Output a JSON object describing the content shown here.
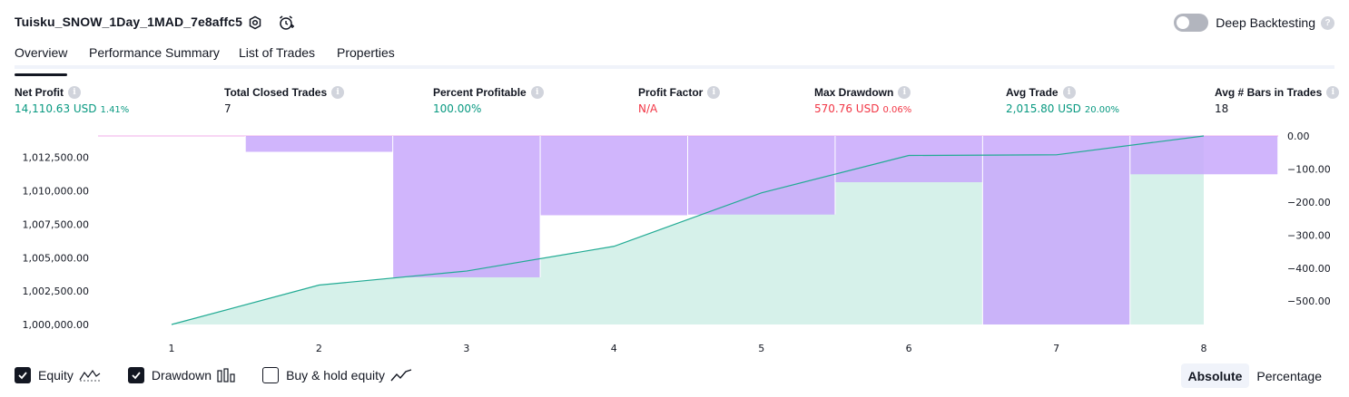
{
  "header": {
    "strategy_name": "Tuisku_SNOW_1Day_1MAD_7e8affc5",
    "settings_icon": "settings-gear-icon",
    "alert_icon": "add-alert-clock-icon",
    "deep_backtesting_label": "Deep Backtesting",
    "deep_backtesting_enabled": false,
    "help_glyph": "?"
  },
  "tabs": [
    {
      "label": "Overview",
      "active": true
    },
    {
      "label": "Performance Summary",
      "active": false
    },
    {
      "label": "List of Trades",
      "active": false
    },
    {
      "label": "Properties",
      "active": false
    }
  ],
  "info_glyph": "i",
  "metrics": [
    {
      "label": "Net Profit",
      "value": "14,110.63 USD",
      "sub": "1.41%",
      "color": "green"
    },
    {
      "label": "Total Closed Trades",
      "value": "7",
      "sub": "",
      "color": "dark"
    },
    {
      "label": "Percent Profitable",
      "value": "100.00%",
      "sub": "",
      "color": "green"
    },
    {
      "label": "Profit Factor",
      "value": "N/A",
      "sub": "",
      "color": "red"
    },
    {
      "label": "Max Drawdown",
      "value": "570.76 USD",
      "sub": "0.06%",
      "color": "red"
    },
    {
      "label": "Avg Trade",
      "value": "2,015.80 USD",
      "sub": "20.00%",
      "color": "green"
    },
    {
      "label": "Avg # Bars in Trades",
      "value": "18",
      "sub": "",
      "color": "dark"
    }
  ],
  "chart_data": {
    "type": "line",
    "x": [
      1,
      2,
      3,
      4,
      5,
      6,
      7,
      8
    ],
    "series": [
      {
        "name": "Equity",
        "type": "area",
        "values": [
          1000000,
          1002950,
          1004000,
          1005850,
          1009850,
          1012650,
          1012700,
          1014110.63
        ]
      },
      {
        "name": "Drawdown",
        "type": "bar",
        "values": [
          0,
          -48,
          -428,
          -240,
          -238,
          -140,
          -570.76,
          -116
        ]
      }
    ],
    "left_axis": {
      "ticks": [
        1000000,
        1002500,
        1005000,
        1007500,
        1010000,
        1012500
      ],
      "tick_labels": [
        "1,000,000.00",
        "1,002,500.00",
        "1,005,000.00",
        "1,007,500.00",
        "1,010,000.00",
        "1,012,500.00"
      ],
      "ylim": [
        1000000,
        1014110.63
      ]
    },
    "right_axis": {
      "ticks": [
        0,
        -100,
        -200,
        -300,
        -400,
        -500
      ],
      "tick_labels": [
        "0.00",
        "−100.00",
        "−200.00",
        "−300.00",
        "−400.00",
        "−500.00"
      ],
      "ylim": [
        -570.76,
        0
      ]
    },
    "x_tick_labels": [
      "1",
      "2",
      "3",
      "4",
      "5",
      "6",
      "7",
      "8"
    ],
    "colors": {
      "equity_line": "#22ab94",
      "equity_fill": "#cfeee6",
      "drawdown_bar": "#c8a8fc",
      "drawdown_edge": "#f5c9f1"
    }
  },
  "legend": [
    {
      "label": "Equity",
      "checked": true,
      "icon": "equity-line-icon"
    },
    {
      "label": "Drawdown",
      "checked": true,
      "icon": "drawdown-bars-icon"
    },
    {
      "label": "Buy & hold equity",
      "checked": false,
      "icon": "buy-hold-line-icon"
    }
  ],
  "mode": {
    "options": [
      "Absolute",
      "Percentage"
    ],
    "selected": "Absolute"
  }
}
